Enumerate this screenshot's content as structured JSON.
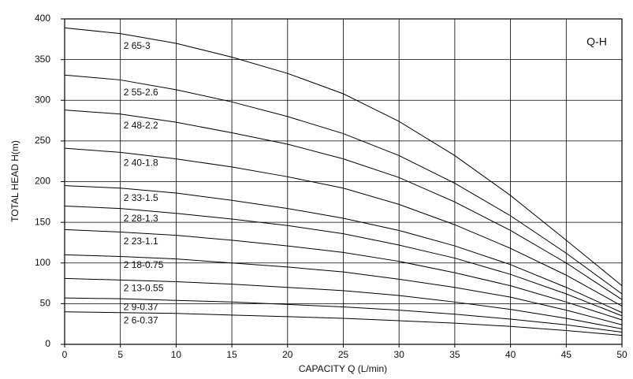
{
  "chart_data": {
    "type": "line",
    "x_label": "CAPACITY  Q (L/min)",
    "y_label": "TOTAL HEAD  H(m)",
    "annotation": "Q-H",
    "x": [
      0,
      5,
      10,
      15,
      20,
      25,
      30,
      35,
      40,
      45,
      50
    ],
    "color": "#000000",
    "grid": true,
    "xlim": [
      0,
      50
    ],
    "xticks": [
      0,
      5,
      10,
      15,
      20,
      25,
      30,
      35,
      40,
      45,
      50
    ],
    "ylim": [
      0,
      400
    ],
    "yticks": [
      0,
      50,
      100,
      150,
      200,
      250,
      300,
      350,
      400
    ],
    "series": [
      {
        "name": "2 65-3",
        "values": [
          389,
          382,
          370,
          353,
          333,
          308,
          274,
          232,
          183,
          128,
          72
        ]
      },
      {
        "name": "2 55-2.6",
        "values": [
          331,
          325,
          313,
          298,
          280,
          259,
          232,
          198,
          158,
          112,
          62
        ]
      },
      {
        "name": "2 48-2.2",
        "values": [
          288,
          283,
          273,
          260,
          246,
          228,
          205,
          175,
          140,
          100,
          55
        ]
      },
      {
        "name": "2 40-1.8",
        "values": [
          241,
          236,
          228,
          218,
          206,
          192,
          172,
          147,
          118,
          85,
          47
        ]
      },
      {
        "name": "2 33-1.5",
        "values": [
          195,
          192,
          186,
          177,
          167,
          155,
          140,
          121,
          98,
          70,
          39
        ]
      },
      {
        "name": "2 28-1.3",
        "values": [
          170,
          167,
          161,
          154,
          146,
          136,
          122,
          106,
          86,
          62,
          35
        ]
      },
      {
        "name": "2 23-1.1",
        "values": [
          141,
          138,
          134,
          128,
          121,
          113,
          102,
          88,
          72,
          52,
          30
        ]
      },
      {
        "name": "2 18-0.75",
        "values": [
          110,
          108,
          105,
          100,
          95,
          89,
          80,
          70,
          58,
          42,
          24
        ]
      },
      {
        "name": "2 13-0.55",
        "values": [
          81,
          79,
          77,
          74,
          70,
          66,
          60,
          52,
          43,
          32,
          19
        ]
      },
      {
        "name": "2 9-0.37",
        "values": [
          57,
          56,
          54,
          52,
          49,
          46,
          42,
          37,
          31,
          24,
          15
        ]
      },
      {
        "name": "2 6-0.37",
        "values": [
          40,
          39,
          38,
          36,
          34,
          32,
          29,
          26,
          22,
          17,
          11
        ]
      }
    ]
  }
}
